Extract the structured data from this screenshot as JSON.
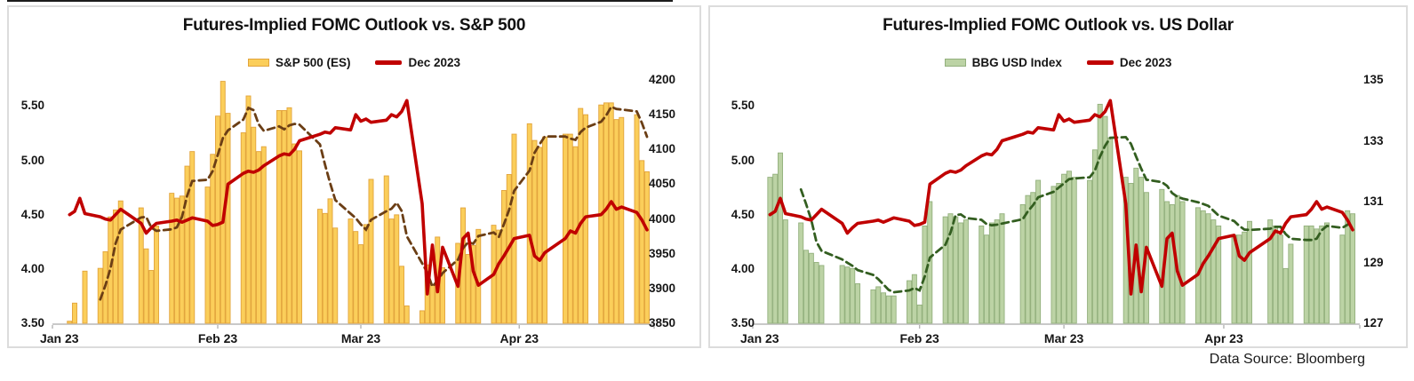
{
  "data_source": "Data Source: Bloomberg",
  "chart_data": [
    {
      "type": "combo-bar-line",
      "title": "Futures-Implied FOMC Outlook vs. S&P 500",
      "legend_position": "top-center",
      "grid": false,
      "x_axis": {
        "labels": [
          "Jan 23",
          "Feb 23",
          "Mar 23",
          "Apr 23"
        ],
        "month_starts": [
          "01-01",
          "02-01",
          "03-01",
          "04-01"
        ]
      },
      "left_axis": {
        "tick_labels": [
          "5.50",
          "5.00",
          "4.50",
          "4.00",
          "3.50"
        ],
        "tick_values": [
          5.5,
          5.0,
          4.5,
          4.0,
          3.5
        ],
        "range": [
          3.5,
          5.74
        ]
      },
      "right_axis": {
        "tick_labels": [
          "4200",
          "4150",
          "4100",
          "4050",
          "4000",
          "3950",
          "3900",
          "3850"
        ],
        "tick_values": [
          4200,
          4150,
          4100,
          4050,
          4000,
          3950,
          3900,
          3850
        ],
        "range": [
          3850,
          4200
        ]
      },
      "dates": [
        "01-03",
        "01-04",
        "01-05",
        "01-06",
        "01-09",
        "01-10",
        "01-11",
        "01-12",
        "01-13",
        "01-17",
        "01-18",
        "01-19",
        "01-20",
        "01-23",
        "01-24",
        "01-25",
        "01-26",
        "01-27",
        "01-30",
        "01-31",
        "02-01",
        "02-02",
        "02-03",
        "02-06",
        "02-07",
        "02-08",
        "02-09",
        "02-10",
        "02-13",
        "02-14",
        "02-15",
        "02-16",
        "02-17",
        "02-21",
        "02-22",
        "02-23",
        "02-24",
        "02-27",
        "02-28",
        "03-01",
        "03-02",
        "03-03",
        "03-06",
        "03-07",
        "03-08",
        "03-09",
        "03-10",
        "03-13",
        "03-14",
        "03-15",
        "03-16",
        "03-17",
        "03-20",
        "03-21",
        "03-22",
        "03-23",
        "03-24",
        "03-27",
        "03-28",
        "03-29",
        "03-30",
        "03-31",
        "04-03",
        "04-04",
        "04-05",
        "04-06",
        "04-10",
        "04-11",
        "04-12",
        "04-13",
        "04-14",
        "04-17",
        "04-18",
        "04-19",
        "04-20",
        "04-21",
        "04-24",
        "04-25",
        "04-26"
      ],
      "series": [
        {
          "name": "S&P 500 (ES)",
          "type": "bar",
          "axis": "right",
          "in_legend": true,
          "fill": "#FBCE5A",
          "edge": "#E2A43C",
          "values": [
            3853,
            3879,
            3835,
            3925,
            3929,
            3953,
            4003,
            4013,
            4026,
            4016,
            3957,
            3926,
            3990,
            4037,
            4030,
            4033,
            4076,
            4097,
            4046,
            4093,
            4148,
            4198,
            4152,
            4124,
            4177,
            4132,
            4097,
            4104,
            4156,
            4156,
            4160,
            4108,
            4098,
            4014,
            4008,
            4029,
            3987,
            4000,
            3982,
            3963,
            3992,
            4057,
            4062,
            4000,
            4006,
            3932,
            3875,
            3868,
            3934,
            3905,
            3974,
            3930,
            3965,
            4016,
            3949,
            3962,
            3985,
            3991,
            3984,
            4041,
            4064,
            4122,
            4137,
            4113,
            4103,
            4118,
            4122,
            4122,
            4104,
            4159,
            4150,
            4164,
            4167,
            4167,
            4143,
            4146,
            4150,
            4084,
            4068
          ]
        },
        {
          "name": "S&P 500 (ES) 5-day moving average",
          "type": "dashed_line",
          "axis": "right",
          "in_legend": false,
          "color": "#6B3E15",
          "derived_from": "S&P 500 (ES)",
          "window": 5
        },
        {
          "name": "Dec 2023",
          "type": "line",
          "axis": "left",
          "in_legend": true,
          "color": "#C00000",
          "values": [
            4.5,
            4.53,
            4.65,
            4.51,
            4.48,
            4.46,
            4.45,
            4.5,
            4.55,
            4.42,
            4.33,
            4.38,
            4.42,
            4.44,
            4.45,
            4.43,
            4.45,
            4.47,
            4.44,
            4.4,
            4.41,
            4.43,
            4.78,
            4.88,
            4.9,
            4.89,
            4.91,
            4.95,
            5.04,
            5.06,
            5.05,
            5.1,
            5.18,
            5.24,
            5.26,
            5.25,
            5.3,
            5.28,
            5.42,
            5.36,
            5.38,
            5.35,
            5.37,
            5.42,
            5.4,
            5.45,
            5.55,
            4.6,
            3.77,
            4.22,
            3.79,
            4.2,
            3.84,
            4.28,
            4.33,
            3.98,
            3.85,
            3.95,
            4.05,
            4.12,
            4.2,
            4.28,
            4.31,
            4.12,
            4.08,
            4.15,
            4.28,
            4.35,
            4.33,
            4.42,
            4.48,
            4.5,
            4.55,
            4.62,
            4.55,
            4.57,
            4.52,
            4.45,
            4.36
          ]
        }
      ]
    },
    {
      "type": "combo-bar-line",
      "title": "Futures-Implied FOMC Outlook vs. US Dollar",
      "legend_position": "top-center",
      "grid": false,
      "x_axis": {
        "labels": [
          "Jan 23",
          "Feb 23",
          "Mar 23",
          "Apr 23"
        ],
        "month_starts": [
          "01-01",
          "02-01",
          "03-01",
          "04-01"
        ]
      },
      "left_axis": {
        "tick_labels": [
          "5.50",
          "5.00",
          "4.50",
          "4.00",
          "3.50"
        ],
        "tick_values": [
          5.5,
          5.0,
          4.5,
          4.0,
          3.5
        ],
        "range": [
          3.5,
          5.74
        ]
      },
      "right_axis": {
        "tick_labels": [
          "135",
          "133",
          "131",
          "129",
          "127"
        ],
        "tick_values": [
          135,
          133,
          131,
          129,
          127
        ],
        "range": [
          127,
          135
        ]
      },
      "dates": [
        "01-03",
        "01-04",
        "01-05",
        "01-06",
        "01-09",
        "01-10",
        "01-11",
        "01-12",
        "01-13",
        "01-17",
        "01-18",
        "01-19",
        "01-20",
        "01-23",
        "01-24",
        "01-25",
        "01-26",
        "01-27",
        "01-30",
        "01-31",
        "02-01",
        "02-02",
        "02-03",
        "02-06",
        "02-07",
        "02-08",
        "02-09",
        "02-10",
        "02-13",
        "02-14",
        "02-15",
        "02-16",
        "02-17",
        "02-21",
        "02-22",
        "02-23",
        "02-24",
        "02-27",
        "02-28",
        "03-01",
        "03-02",
        "03-03",
        "03-06",
        "03-07",
        "03-08",
        "03-09",
        "03-10",
        "03-13",
        "03-14",
        "03-15",
        "03-16",
        "03-17",
        "03-20",
        "03-21",
        "03-22",
        "03-23",
        "03-24",
        "03-27",
        "03-28",
        "03-29",
        "03-30",
        "03-31",
        "04-03",
        "04-04",
        "04-05",
        "04-06",
        "04-10",
        "04-11",
        "04-12",
        "04-13",
        "04-14",
        "04-17",
        "04-18",
        "04-19",
        "04-20",
        "04-21",
        "04-24",
        "04-25",
        "04-26"
      ],
      "series": [
        {
          "name": "BBG USD Index",
          "type": "bar",
          "axis": "right",
          "in_legend": true,
          "fill": "#BCD3A5",
          "edge": "#93B07D",
          "values": [
            131.8,
            131.9,
            132.6,
            130.4,
            130.3,
            129.4,
            129.3,
            129.0,
            128.9,
            128.9,
            128.85,
            128.8,
            128.3,
            128.1,
            128.2,
            128.0,
            127.9,
            127.9,
            128.4,
            128.6,
            127.6,
            130.2,
            131.0,
            130.5,
            130.6,
            130.5,
            130.3,
            130.4,
            130.2,
            129.9,
            130.3,
            130.4,
            130.6,
            130.9,
            131.2,
            131.3,
            131.7,
            131.5,
            131.6,
            131.9,
            132.0,
            131.8,
            131.7,
            132.7,
            134.2,
            133.8,
            133.1,
            131.8,
            131.6,
            132.1,
            131.8,
            131.3,
            131.4,
            131.0,
            130.9,
            131.2,
            131.0,
            130.8,
            130.7,
            130.6,
            130.4,
            130.2,
            129.9,
            129.9,
            130.0,
            130.35,
            130.4,
            130.2,
            129.9,
            128.8,
            129.6,
            130.2,
            130.2,
            130.1,
            130.2,
            130.3,
            129.9,
            130.7,
            130.6
          ]
        },
        {
          "name": "BBG USD Index 5-day moving average",
          "type": "dashed_line",
          "axis": "right",
          "in_legend": false,
          "color": "#335E20",
          "derived_from": "BBG USD Index",
          "window": 5
        },
        {
          "name": "Dec 2023",
          "type": "line",
          "axis": "left",
          "in_legend": true,
          "color": "#C00000",
          "values": [
            4.5,
            4.53,
            4.65,
            4.51,
            4.48,
            4.46,
            4.45,
            4.5,
            4.55,
            4.42,
            4.33,
            4.38,
            4.42,
            4.44,
            4.45,
            4.43,
            4.45,
            4.47,
            4.44,
            4.4,
            4.41,
            4.43,
            4.78,
            4.88,
            4.9,
            4.89,
            4.91,
            4.95,
            5.04,
            5.06,
            5.05,
            5.1,
            5.18,
            5.24,
            5.26,
            5.25,
            5.3,
            5.28,
            5.42,
            5.36,
            5.38,
            5.35,
            5.37,
            5.42,
            5.4,
            5.45,
            5.55,
            4.6,
            3.77,
            4.22,
            3.79,
            4.2,
            3.84,
            4.28,
            4.33,
            3.98,
            3.85,
            3.95,
            4.05,
            4.12,
            4.2,
            4.28,
            4.31,
            4.12,
            4.08,
            4.15,
            4.28,
            4.35,
            4.33,
            4.42,
            4.48,
            4.5,
            4.55,
            4.62,
            4.55,
            4.57,
            4.52,
            4.45,
            4.36
          ]
        }
      ]
    }
  ]
}
